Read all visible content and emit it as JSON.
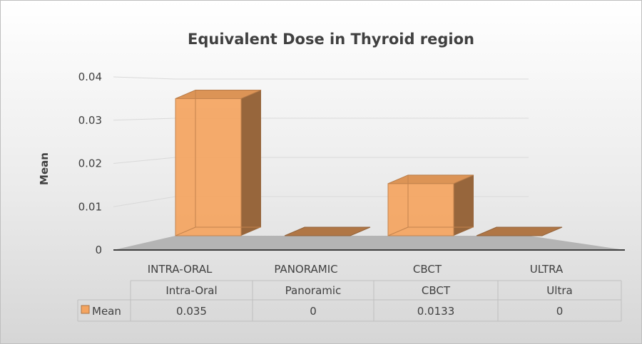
{
  "chart_data": {
    "type": "bar",
    "title": "Equivalent Dose in Thyroid region",
    "ylabel": "Mean",
    "xlabel": "",
    "categories": [
      "INTRA-ORAL",
      "PANORAMIC",
      "CBCT",
      "ULTRA"
    ],
    "ylim": [
      0,
      0.04
    ],
    "yticks": [
      "0",
      "0.01",
      "0.02",
      "0.03",
      "0.04"
    ],
    "grid": true,
    "bar_color": "#F4A460",
    "series": [
      {
        "name": "Mean",
        "values": [
          0.035,
          0,
          0.0133,
          0
        ]
      }
    ],
    "data_table": {
      "headers": [
        "Intra-Oral",
        "Panoramic",
        "CBCT",
        "Ultra"
      ],
      "rows": [
        {
          "label": "Mean",
          "values": [
            "0.035",
            "0",
            "0.0133",
            "0"
          ]
        }
      ]
    }
  }
}
